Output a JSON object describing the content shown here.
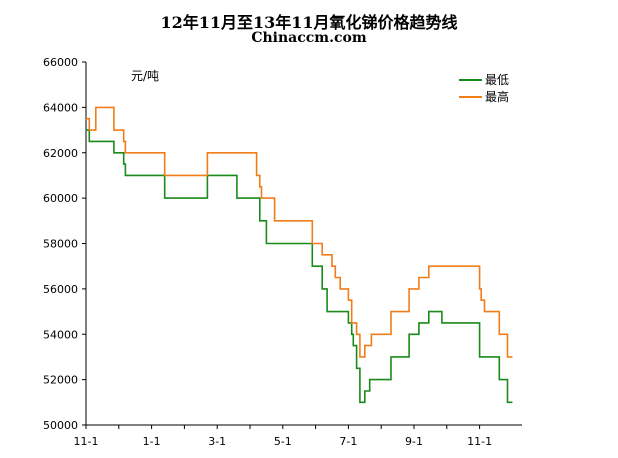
{
  "chart_data": {
    "type": "line",
    "title": "12年11月至13年11月氧化锑价格趋势线",
    "subtitle": "Chinaccm.com",
    "unit_label": "元/吨",
    "ylim": [
      50000,
      66000
    ],
    "yticks": [
      50000,
      52000,
      54000,
      56000,
      58000,
      60000,
      62000,
      64000,
      66000
    ],
    "xlim": [
      0,
      12.35
    ],
    "xticks": [
      {
        "label": "11-1",
        "x": 0
      },
      {
        "label": "1-1",
        "x": 2
      },
      {
        "label": "3-1",
        "x": 4
      },
      {
        "label": "5-1",
        "x": 6
      },
      {
        "label": "7-1",
        "x": 8
      },
      {
        "label": "9-1",
        "x": 10
      },
      {
        "label": "11-1",
        "x": 12
      }
    ],
    "grid": false,
    "legend_position": "top-right",
    "series": [
      {
        "name": "最低",
        "color": "#1a8a1a",
        "x": [
          0,
          0.1,
          0.1,
          0.85,
          0.85,
          1.15,
          1.15,
          1.2,
          1.2,
          1.25,
          1.25,
          1.35,
          1.35,
          2.4,
          2.4,
          3.7,
          3.7,
          4.6,
          4.6,
          5.3,
          5.3,
          5.5,
          5.5,
          5.75,
          5.75,
          6.9,
          6.9,
          7.2,
          7.2,
          7.35,
          7.35,
          7.4,
          7.4,
          8.0,
          8.0,
          8.1,
          8.1,
          8.15,
          8.15,
          8.25,
          8.25,
          8.35,
          8.35,
          8.5,
          8.5,
          8.65,
          8.65,
          8.7,
          8.7,
          9.3,
          9.3,
          9.85,
          9.85,
          10.15,
          10.15,
          10.45,
          10.45,
          10.85,
          10.85,
          12.0,
          12.0,
          12.6,
          12.6,
          12.85,
          12.85,
          13.0
        ],
        "y": [
          63000,
          63000,
          62500,
          62500,
          62000,
          62000,
          61500,
          61500,
          61000,
          61000,
          61000,
          61000,
          61000,
          61000,
          60000,
          60000,
          61000,
          61000,
          60000,
          60000,
          59000,
          59000,
          58000,
          58000,
          58000,
          58000,
          57000,
          57000,
          56000,
          56000,
          55000,
          55000,
          55000,
          55000,
          54500,
          54500,
          54000,
          54000,
          53500,
          53500,
          52500,
          52500,
          51000,
          51000,
          51500,
          51500,
          52000,
          52000,
          52000,
          52000,
          53000,
          53000,
          54000,
          54000,
          54500,
          54500,
          55000,
          55000,
          54500,
          54500,
          53000,
          53000,
          52000,
          52000,
          51000,
          51000
        ]
      },
      {
        "name": "最高",
        "color": "#f07d1a",
        "x": [
          0,
          0.1,
          0.1,
          0.3,
          0.3,
          0.4,
          0.4,
          0.85,
          0.85,
          1.15,
          1.15,
          1.2,
          1.2,
          1.25,
          1.25,
          1.35,
          1.35,
          2.4,
          2.4,
          3.7,
          3.7,
          5.2,
          5.2,
          5.3,
          5.3,
          5.35,
          5.35,
          5.5,
          5.5,
          5.75,
          5.75,
          6.9,
          6.9,
          7.2,
          7.2,
          7.5,
          7.5,
          7.6,
          7.6,
          7.75,
          7.75,
          8.0,
          8.0,
          8.1,
          8.1,
          8.25,
          8.25,
          8.35,
          8.35,
          8.5,
          8.5,
          8.65,
          8.65,
          8.7,
          8.7,
          9.3,
          9.3,
          9.85,
          9.85,
          10.15,
          10.15,
          10.45,
          10.45,
          12.0,
          12.0,
          12.05,
          12.05,
          12.15,
          12.15,
          12.6,
          12.6,
          12.85,
          12.85,
          13.0
        ],
        "y": [
          63500,
          63500,
          63000,
          63000,
          64000,
          64000,
          64000,
          64000,
          63000,
          63000,
          62500,
          62500,
          62000,
          62000,
          62000,
          62000,
          62000,
          62000,
          61000,
          61000,
          62000,
          62000,
          61000,
          61000,
          60500,
          60500,
          60000,
          60000,
          60000,
          60000,
          59000,
          59000,
          58000,
          58000,
          57500,
          57500,
          57000,
          57000,
          56500,
          56500,
          56000,
          56000,
          55500,
          55500,
          54500,
          54500,
          54000,
          54000,
          53000,
          53000,
          53500,
          53500,
          53500,
          53500,
          54000,
          54000,
          55000,
          55000,
          56000,
          56000,
          56500,
          56500,
          57000,
          57000,
          56000,
          56000,
          55500,
          55500,
          55000,
          55000,
          54000,
          54000,
          53000,
          53000
        ]
      }
    ]
  }
}
